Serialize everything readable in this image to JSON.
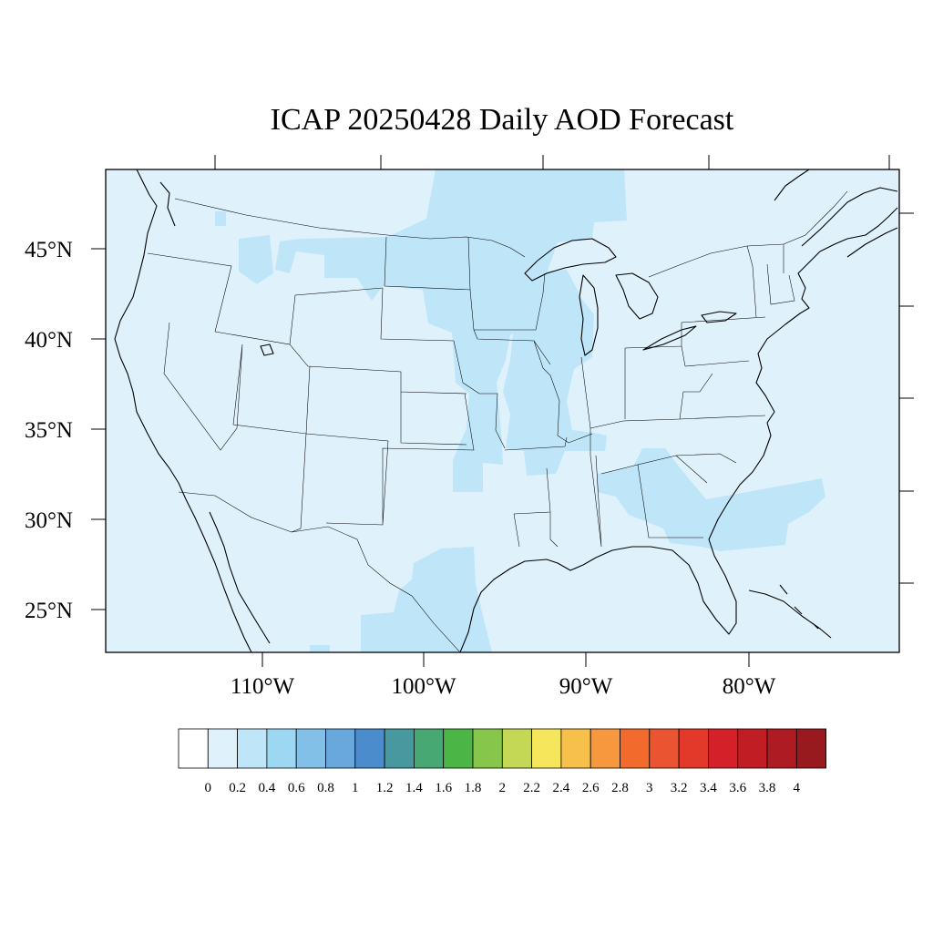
{
  "title": "ICAP 20250428 Daily AOD Forecast",
  "map": {
    "background_color": "#dff2fc",
    "lat_labels": [
      "45°N",
      "40°N",
      "35°N",
      "30°N",
      "25°N"
    ],
    "lon_labels": [
      "110°W",
      "100°W",
      "90°W",
      "80°W"
    ]
  },
  "aod_regions": [
    {
      "name": "northern-plains-plume",
      "aod_range": "0.2–0.4",
      "color": "#bee6f8"
    },
    {
      "name": "upper-midwest-plume",
      "aod_range": "0.2–0.4",
      "color": "#bee6f8"
    },
    {
      "name": "southeast-atlantic-plume",
      "aod_range": "0.2–0.4",
      "color": "#bee6f8"
    },
    {
      "name": "south-texas-plume",
      "aod_range": "0.2–0.4",
      "color": "#bee6f8"
    },
    {
      "name": "idaho-montana-patch",
      "aod_range": "0.2–0.4",
      "color": "#bee6f8"
    }
  ],
  "colorbar": {
    "labels": [
      "0",
      "0.2",
      "0.4",
      "0.6",
      "0.8",
      "1",
      "1.2",
      "1.4",
      "1.6",
      "1.8",
      "2",
      "2.2",
      "2.4",
      "2.6",
      "2.8",
      "3",
      "3.2",
      "3.4",
      "3.6",
      "3.8",
      "4"
    ],
    "colors": [
      "#ffffff",
      "#dff2fc",
      "#bee6f8",
      "#9dd8f3",
      "#83c0e8",
      "#69a8dc",
      "#4a8ccc",
      "#47999f",
      "#47a874",
      "#4bb545",
      "#86c64b",
      "#c4d856",
      "#f6e65c",
      "#f7c04a",
      "#f7983e",
      "#f36b2c",
      "#eb5430",
      "#e2392a",
      "#d42028",
      "#c01d25",
      "#ae1b22",
      "#991a1e"
    ]
  }
}
